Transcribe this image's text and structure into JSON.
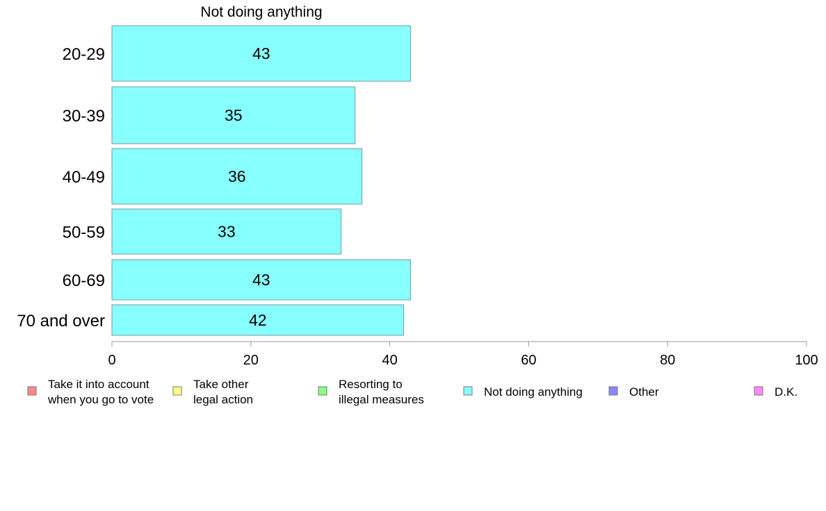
{
  "chart_data": {
    "type": "bar",
    "orientation": "horizontal",
    "title": "Not doing anything",
    "categories": [
      "20-29",
      "30-39",
      "40-49",
      "50-59",
      "60-69",
      "70 and over"
    ],
    "values": [
      43,
      35,
      36,
      33,
      43,
      42
    ],
    "value_labels": [
      "43",
      "35",
      "36",
      "33",
      "43",
      "42"
    ],
    "xlim": [
      0,
      100
    ],
    "xticks": [
      "0",
      "20",
      "40",
      "60",
      "80",
      "100"
    ],
    "xlabel": "",
    "ylabel": "",
    "grid": false,
    "bar_color": "#88ffff",
    "bar_edge_color": "#7a9a9a",
    "legend": {
      "placement": "bottom",
      "items": [
        {
          "lines": [
            "Take it into account",
            "when you go to vote"
          ],
          "color": "#ff8888"
        },
        {
          "lines": [
            "Take other",
            "legal action"
          ],
          "color": "#ffff88"
        },
        {
          "lines": [
            "Resorting to",
            "illegal measures"
          ],
          "color": "#88ff88"
        },
        {
          "lines": [
            "Not doing anything"
          ],
          "color": "#88ffff"
        },
        {
          "lines": [
            "Other"
          ],
          "color": "#8888ff"
        },
        {
          "lines": [
            "D.K."
          ],
          "color": "#ff88ff"
        }
      ]
    }
  }
}
